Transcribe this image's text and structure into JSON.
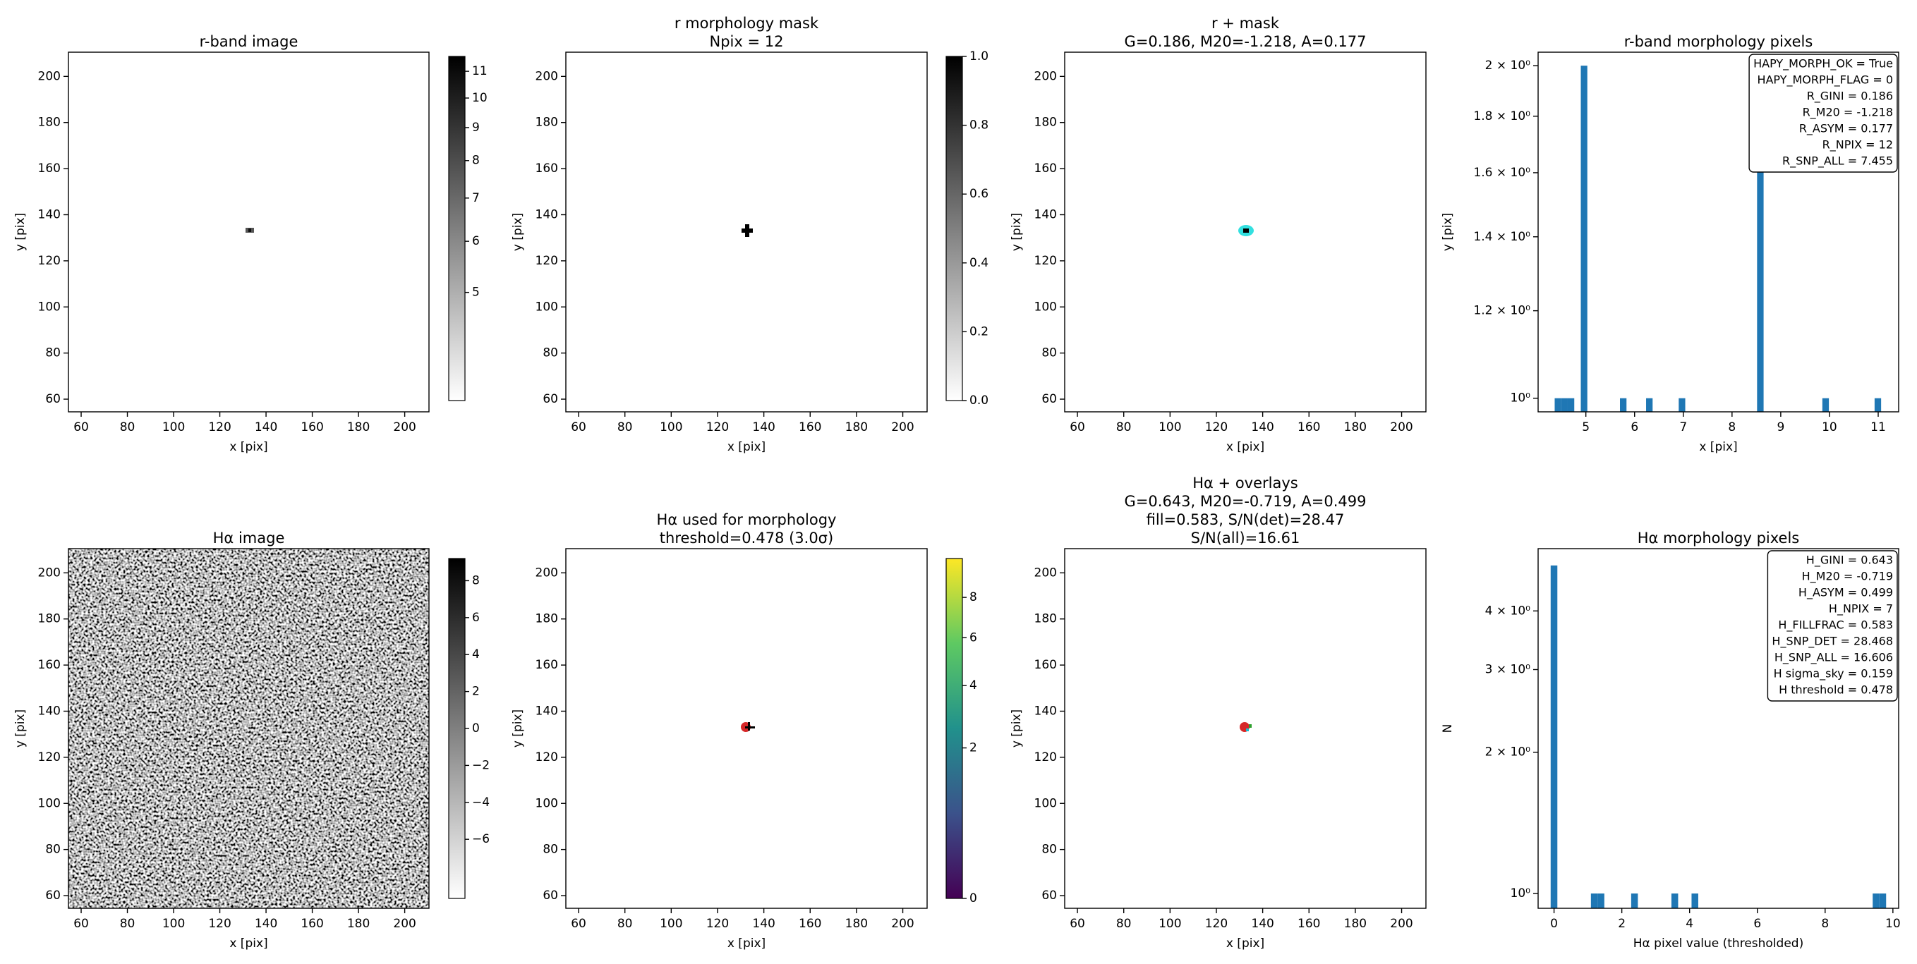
{
  "chart_data": [
    {
      "type": "image",
      "title": [
        "r-band image"
      ],
      "xlabel": "x [pix]",
      "ylabel": "y [pix]",
      "xlim": [
        54.5,
        210.5
      ],
      "ylim": [
        54.5,
        210.5
      ],
      "xticks": [
        60,
        80,
        100,
        120,
        140,
        160,
        180,
        200
      ],
      "yticks": [
        60,
        80,
        100,
        120,
        140,
        160,
        180,
        200
      ],
      "colorbar": {
        "lim": [
          3.4,
          11.6
        ],
        "scale": "log",
        "ticks": [
          5,
          6,
          7,
          8,
          9,
          10,
          11
        ],
        "colors": [
          "#ffffff",
          "#000000"
        ]
      }
    },
    {
      "type": "image",
      "title": [
        "r morphology mask",
        "Npix = 12"
      ],
      "xlabel": "x [pix]",
      "ylabel": "y [pix]",
      "xlim": [
        54.5,
        210.5
      ],
      "ylim": [
        54.5,
        210.5
      ],
      "xticks": [
        60,
        80,
        100,
        120,
        140,
        160,
        180,
        200
      ],
      "yticks": [
        60,
        80,
        100,
        120,
        140,
        160,
        180,
        200
      ],
      "colorbar": {
        "lim": [
          0,
          1
        ],
        "scale": "linear",
        "ticks": [
          {
            "value": 0,
            "label": "0.0"
          },
          0.2,
          0.4,
          0.6,
          0.8,
          {
            "value": 1,
            "label": "1.0"
          }
        ],
        "colors": [
          "#ffffff",
          "#000000"
        ]
      }
    },
    {
      "type": "image",
      "title": [
        "r + mask",
        "G=0.186, M20=-1.218, A=0.177"
      ],
      "xlabel": "x [pix]",
      "ylabel": "y [pix]",
      "xlim": [
        54.5,
        210.5
      ],
      "ylim": [
        54.5,
        210.5
      ],
      "xticks": [
        60,
        80,
        100,
        120,
        140,
        160,
        180,
        200
      ],
      "yticks": [
        60,
        80,
        100,
        120,
        140,
        160,
        180,
        200
      ]
    },
    {
      "type": "histogram",
      "title": [
        "r-band morphology pixels"
      ],
      "xlabel": "x [pix]",
      "ylabel": "y [pix]",
      "color": "#1f77b4",
      "yscale": "log",
      "bins": [
        4.36,
        4.494,
        4.628,
        4.762,
        4.896,
        5.03,
        5.164,
        5.298,
        5.432,
        5.566,
        5.7,
        5.834,
        5.968,
        6.102,
        6.236,
        6.37,
        6.504,
        6.638,
        6.772,
        6.906,
        7.04,
        7.174,
        7.308,
        7.442,
        7.576,
        7.71,
        7.844,
        7.978,
        8.112,
        8.246,
        8.38,
        8.514,
        8.648,
        8.782,
        8.916,
        9.05,
        9.184,
        9.318,
        9.452,
        9.586,
        9.72,
        9.854,
        9.988,
        10.122,
        10.256,
        10.39,
        10.524,
        10.658,
        10.792,
        10.926,
        11.06
      ],
      "counts": [
        1,
        1,
        1,
        0,
        2,
        0,
        0,
        0,
        0,
        0,
        1,
        0,
        0,
        0,
        1,
        0,
        0,
        0,
        0,
        1,
        0,
        0,
        0,
        0,
        0,
        0,
        0,
        0,
        0,
        0,
        0,
        2,
        0,
        0,
        0,
        0,
        0,
        0,
        0,
        0,
        0,
        1,
        0,
        0,
        0,
        0,
        0,
        0,
        0,
        1
      ],
      "xlim": [
        4.02,
        11.42
      ],
      "ylim": [
        0.972,
        2.057
      ],
      "xticks": [
        5,
        6,
        7,
        8,
        9,
        10,
        11
      ],
      "yticks": [
        {
          "value": 1,
          "label": "10⁰"
        },
        {
          "value": 1.2,
          "label": "1.2 × 10⁰"
        },
        {
          "value": 1.4,
          "label": "1.4 × 10⁰"
        },
        {
          "value": 1.6,
          "label": "1.6 × 10⁰"
        },
        {
          "value": 1.8,
          "label": "1.8 × 10⁰"
        },
        {
          "value": 2,
          "label": "2 × 10⁰"
        }
      ],
      "annotation": [
        "HAPY_MORPH_OK = True",
        "HAPY_MORPH_FLAG = 0",
        "R_GINI = 0.186",
        "R_M20 = -1.218",
        "R_ASYM = 0.177",
        "R_NPIX = 12",
        "R_SNP_ALL = 7.455"
      ]
    },
    {
      "type": "image",
      "title": [
        "Hα image"
      ],
      "xlabel": "x [pix]",
      "ylabel": "y [pix]",
      "xlim": [
        54.5,
        210.5
      ],
      "ylim": [
        54.5,
        210.5
      ],
      "xticks": [
        60,
        80,
        100,
        120,
        140,
        160,
        180,
        200
      ],
      "yticks": [
        60,
        80,
        100,
        120,
        140,
        160,
        180,
        200
      ],
      "colorbar": {
        "lim": [
          -9.2,
          9.2
        ],
        "scale": "linear",
        "ticks": [
          {
            "value": -6,
            "label": "−6"
          },
          {
            "value": -4,
            "label": "−4"
          },
          {
            "value": -2,
            "label": "−2"
          },
          0,
          2,
          4,
          6,
          8
        ],
        "colors": [
          "#ffffff",
          "#000000"
        ]
      }
    },
    {
      "type": "image",
      "title": [
        "Hα used for morphology",
        "threshold=0.478 (3.0σ)"
      ],
      "xlabel": "x [pix]",
      "ylabel": "y [pix]",
      "xlim": [
        54.5,
        210.5
      ],
      "ylim": [
        54.5,
        210.5
      ],
      "xticks": [
        60,
        80,
        100,
        120,
        140,
        160,
        180,
        200
      ],
      "yticks": [
        60,
        80,
        100,
        120,
        140,
        160,
        180,
        200
      ],
      "colorbar": {
        "lim": [
          0,
          10.2
        ],
        "scale": "sqrt",
        "ticks": [
          0,
          2,
          4,
          6,
          8
        ],
        "colors": [
          "#440154",
          "#3b528b",
          "#21918c",
          "#5ec962",
          "#fde725"
        ]
      }
    },
    {
      "type": "image",
      "title": [
        "Hα + overlays",
        "G=0.643, M20=-0.719, A=0.499",
        "fill=0.583, S/N(det)=28.47",
        "S/N(all)=16.61"
      ],
      "xlabel": "x [pix]",
      "ylabel": "y [pix]",
      "xlim": [
        54.5,
        210.5
      ],
      "ylim": [
        54.5,
        210.5
      ],
      "xticks": [
        60,
        80,
        100,
        120,
        140,
        160,
        180,
        200
      ],
      "yticks": [
        60,
        80,
        100,
        120,
        140,
        160,
        180,
        200
      ]
    },
    {
      "type": "histogram",
      "title": [
        "Hα morphology pixels"
      ],
      "xlabel": "Hα pixel value (thresholded)",
      "ylabel": "N",
      "color": "#1f77b4",
      "yscale": "log",
      "bins": [
        -0.1,
        0.098,
        0.296,
        0.494,
        0.692,
        0.89,
        1.088,
        1.286,
        1.484,
        1.682,
        1.88,
        2.078,
        2.276,
        2.474,
        2.672,
        2.87,
        3.068,
        3.266,
        3.464,
        3.662,
        3.86,
        4.058,
        4.256,
        4.454,
        4.652,
        4.85,
        5.048,
        5.246,
        5.444,
        5.642,
        5.84,
        6.038,
        6.236,
        6.434,
        6.632,
        6.83,
        7.028,
        7.226,
        7.424,
        7.622,
        7.82,
        8.018,
        8.216,
        8.414,
        8.612,
        8.81,
        9.008,
        9.206,
        9.404,
        9.602,
        9.8
      ],
      "counts": [
        5,
        0,
        0,
        0,
        0,
        0,
        1,
        1,
        0,
        0,
        0,
        0,
        1,
        0,
        0,
        0,
        0,
        0,
        1,
        0,
        0,
        1,
        0,
        0,
        0,
        0,
        0,
        0,
        0,
        0,
        0,
        0,
        0,
        0,
        0,
        0,
        0,
        0,
        0,
        0,
        0,
        0,
        0,
        0,
        0,
        0,
        0,
        0,
        1,
        1
      ],
      "xlim": [
        -0.47,
        10.17
      ],
      "ylim": [
        0.93,
        5.43
      ],
      "xticks": [
        0,
        2,
        4,
        6,
        8,
        10
      ],
      "yticks": [
        {
          "value": 1,
          "label": "10⁰"
        },
        {
          "value": 2,
          "label": "2 × 10⁰"
        },
        {
          "value": 3,
          "label": "3 × 10⁰"
        },
        {
          "value": 4,
          "label": "4 × 10⁰"
        }
      ],
      "annotation": [
        "H_GINI = 0.643",
        "H_M20 = -0.719",
        "H_ASYM = 0.499",
        "H_NPIX = 7",
        "H_FILLFRAC = 0.583",
        "H_SNP_DET = 28.468",
        "H_SNP_ALL = 16.606",
        "H sigma_sky = 0.159",
        "H threshold = 0.478"
      ]
    }
  ]
}
